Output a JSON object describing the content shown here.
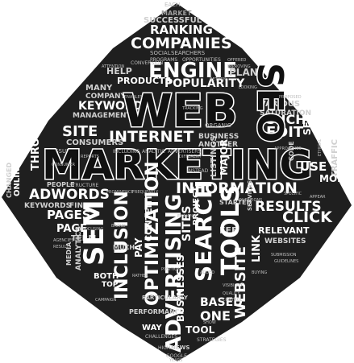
{
  "cloud": {
    "hero": [
      "WEB",
      "MARKETING",
      "SEO"
    ],
    "words": [
      "EACH",
      "MARKET",
      "SUCCESSFUL",
      "RANKING",
      "COMPANIES",
      "SOCIAL",
      "SEARCHERS",
      "PROGRAMS",
      "OPPORTUNITIES",
      "ENGINE",
      "PLAN",
      "HELP",
      "PRODUCTS",
      "POPULARITY",
      "MANY",
      "COMPANY",
      "KEYWORD",
      "MANAGEMENT",
      "CONVERSION",
      "INTERNET",
      "SITE",
      "CONSUMERS",
      "EDIT",
      "SUCH",
      "VARIOUS",
      "SATURATION",
      "SEE",
      "ISSUES",
      "THROUGH",
      "BUSINESS",
      "ANOTHER",
      "ORGANIC",
      "TRAFFIC",
      "INFORMATION",
      "ADWORDS",
      "USE",
      "MORE",
      "PEOPLE",
      "STRUCTURE",
      "KEYWORDS",
      "FIND",
      "CLICK",
      "RESULTS",
      "PAGES",
      "PAGE",
      "TERM",
      "RELEVANT",
      "WEBSITES",
      "LINK",
      "FEE",
      "STARTED",
      "SEM",
      "INCLUSION",
      "OPTIMIZATION",
      "ADVERTISING",
      "SITES",
      "SEARCH",
      "TOOLS",
      "WEBSITE",
      "MUCH",
      "BOTH",
      "TOP",
      "PAY",
      "CONTENT",
      "PERFORMANCE",
      "BUSINESSES",
      "BASED",
      "ONE",
      "WAY",
      "TOOL",
      "PARTICULARLY",
      "CHALLENGES",
      "STRATEGIES",
      "NEWS",
      "GOOGLE",
      "HIGH",
      "YEARS",
      "CHANGED",
      "ONLINE",
      "ANALYTICS",
      "MEDIA",
      "CODE",
      "PROJECT",
      "LISTINGS",
      "MAJOR",
      "INCLUDING",
      "ANALYTIC",
      "ADVERTISERS",
      "ATTENTION",
      "OFFERED",
      "IMPROVING",
      "PROPOSED",
      "APPROACHES",
      "DIFFERENT",
      "INSTEAD",
      "PROMINENCE",
      "REPORTS",
      "CONSUMER",
      "QUALITY",
      "CONTROL",
      "ADDED",
      "VISIBILITY",
      "SHOW",
      "BUYING",
      "AGENCIES",
      "RESULT",
      "FOCUSING",
      "BRAND",
      "FREQUENTLY",
      "SPECIFIC",
      "CAMPAIGN",
      "EXAMPLE",
      "SUBMISSION",
      "GUIDELINES",
      "ENABLES",
      "TRACKING",
      "RETURN",
      "LOOKING",
      "ETHICAL",
      "APPEAR",
      "POSITION",
      "SERVICES",
      "QUESTIONS",
      "RATHER"
    ]
  }
}
